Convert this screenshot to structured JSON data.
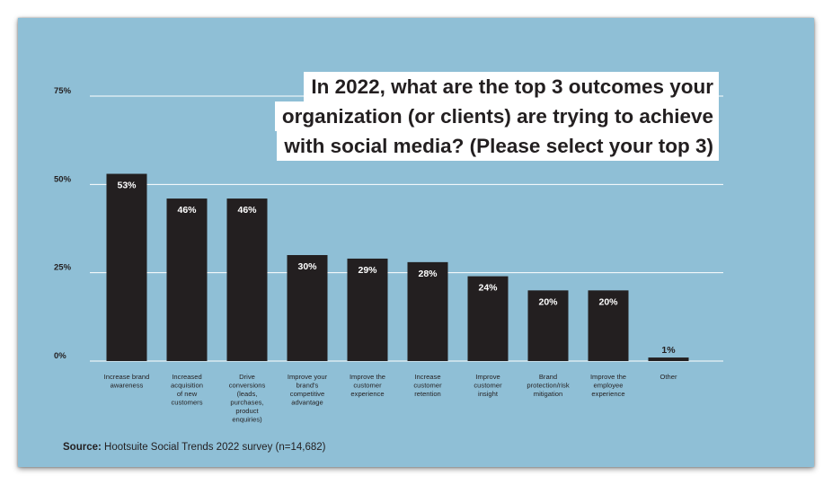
{
  "title_lines": [
    "In 2022, what are the top 3 outcomes your",
    "organization (or clients) are trying to achieve",
    "with social media? (Please select your top 3)"
  ],
  "source": {
    "label": "Source:",
    "text": "Hootsuite Social Trends 2022 survey (n=14,682)"
  },
  "colors": {
    "background": "#8fbfd6",
    "bar": "#231f20",
    "gridline": "#ffffff",
    "title_box": "#ffffff"
  },
  "chart_data": {
    "type": "bar",
    "categories": [
      "Increase brand awareness",
      "Increased acquisition of new customers",
      "Drive conversions (leads, purchases, product enquiries)",
      "Improve your brand's competitive advantage",
      "Improve the customer experience",
      "Increase customer retention",
      "Improve customer insight",
      "Brand protection/risk mitigation",
      "Improve the employee experience",
      "Other"
    ],
    "category_label_lines": [
      [
        "Increase brand",
        "awareness"
      ],
      [
        "Increased",
        "acquisition",
        "of new",
        "customers"
      ],
      [
        "Drive",
        "conversions",
        "(leads,",
        "purchases,",
        "product",
        "enquiries)"
      ],
      [
        "Improve your",
        "brand's",
        "competitive",
        "advantage"
      ],
      [
        "Improve the",
        "customer",
        "experience"
      ],
      [
        "Increase",
        "customer",
        "retention"
      ],
      [
        "Improve",
        "customer",
        "insight"
      ],
      [
        "Brand",
        "protection/risk",
        "mitigation"
      ],
      [
        "Improve the",
        "employee",
        "experience"
      ],
      [
        "Other"
      ]
    ],
    "values": [
      53,
      46,
      46,
      30,
      29,
      28,
      24,
      20,
      20,
      1
    ],
    "data_labels": [
      "53%",
      "46%",
      "46%",
      "30%",
      "29%",
      "28%",
      "24%",
      "20%",
      "20%",
      "1%"
    ],
    "ylim": [
      0,
      75
    ],
    "yticks": [
      0,
      25,
      50,
      75
    ],
    "ytick_labels": [
      "0%",
      "25%",
      "50%",
      "75%"
    ],
    "grid": true,
    "legend": "none"
  }
}
